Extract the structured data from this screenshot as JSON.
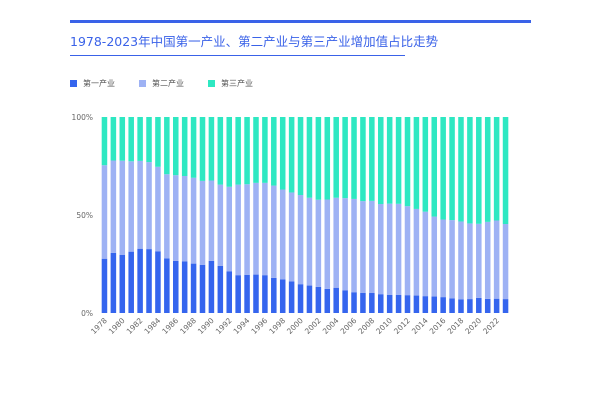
{
  "header": {
    "title": "1978-2023年中国第一产业、第二产业与第三产业增加值占比走势"
  },
  "colors": {
    "primary": "#3565ee",
    "secondary": "#9eb2f4",
    "tertiary": "#2ee8c2",
    "accent": "#3a62e8"
  },
  "chart_data": {
    "type": "bar",
    "stacked": true,
    "categories": [
      "1978",
      "1979",
      "1980",
      "1981",
      "1982",
      "1983",
      "1984",
      "1985",
      "1986",
      "1987",
      "1988",
      "1989",
      "1990",
      "1991",
      "1992",
      "1993",
      "1994",
      "1995",
      "1996",
      "1997",
      "1998",
      "1999",
      "2000",
      "2001",
      "2002",
      "2003",
      "2004",
      "2005",
      "2006",
      "2007",
      "2008",
      "2009",
      "2010",
      "2011",
      "2012",
      "2013",
      "2014",
      "2015",
      "2016",
      "2017",
      "2018",
      "2019",
      "2020",
      "2021",
      "2022",
      "2023"
    ],
    "x_tick_labels": [
      "1978",
      "1980",
      "1982",
      "1984",
      "1986",
      "1988",
      "1990",
      "1992",
      "1994",
      "1996",
      "1998",
      "2000",
      "2002",
      "2004",
      "2006",
      "2008",
      "2010",
      "2012",
      "2014",
      "2016",
      "2018",
      "2020",
      "2022"
    ],
    "y_tick_labels": [
      "0%",
      "50%",
      "100%"
    ],
    "ylim": [
      0,
      100
    ],
    "legend_position": "top-left",
    "series": [
      {
        "name": "第一产业",
        "values": [
          27.7,
          30.7,
          29.6,
          31.3,
          32.8,
          32.6,
          31.5,
          27.9,
          26.6,
          26.3,
          25.2,
          24.6,
          26.6,
          24.0,
          21.3,
          19.3,
          19.5,
          19.6,
          19.3,
          17.9,
          17.2,
          16.1,
          14.7,
          14.0,
          13.3,
          12.3,
          12.9,
          11.6,
          10.6,
          10.2,
          10.2,
          9.6,
          9.3,
          9.2,
          9.1,
          8.9,
          8.6,
          8.4,
          8.1,
          7.5,
          7.0,
          7.1,
          7.7,
          7.2,
          7.3,
          7.1
        ]
      },
      {
        "name": "第二产业",
        "values": [
          47.7,
          47.1,
          48.1,
          46.1,
          44.8,
          44.4,
          43.1,
          42.9,
          43.7,
          43.6,
          43.8,
          42.8,
          41.0,
          41.5,
          43.1,
          46.2,
          46.2,
          46.8,
          47.1,
          47.1,
          45.8,
          45.4,
          45.5,
          44.8,
          44.5,
          45.6,
          45.9,
          47.0,
          47.6,
          46.9,
          47.0,
          46.0,
          46.5,
          46.5,
          45.4,
          44.2,
          43.1,
          40.8,
          39.6,
          39.9,
          39.7,
          38.6,
          37.8,
          39.3,
          39.9,
          38.3
        ]
      },
      {
        "name": "第三产业",
        "values": [
          24.6,
          22.2,
          22.3,
          22.6,
          22.4,
          23.0,
          25.4,
          29.2,
          29.7,
          30.1,
          31.0,
          32.6,
          32.4,
          34.5,
          35.6,
          34.5,
          34.3,
          33.6,
          33.6,
          35.0,
          37.0,
          38.5,
          39.8,
          41.2,
          42.2,
          42.1,
          41.2,
          41.4,
          41.8,
          42.9,
          42.8,
          44.4,
          44.2,
          44.3,
          45.5,
          46.9,
          48.3,
          50.8,
          52.3,
          52.6,
          53.3,
          54.3,
          54.5,
          53.5,
          52.8,
          54.6
        ]
      }
    ]
  }
}
